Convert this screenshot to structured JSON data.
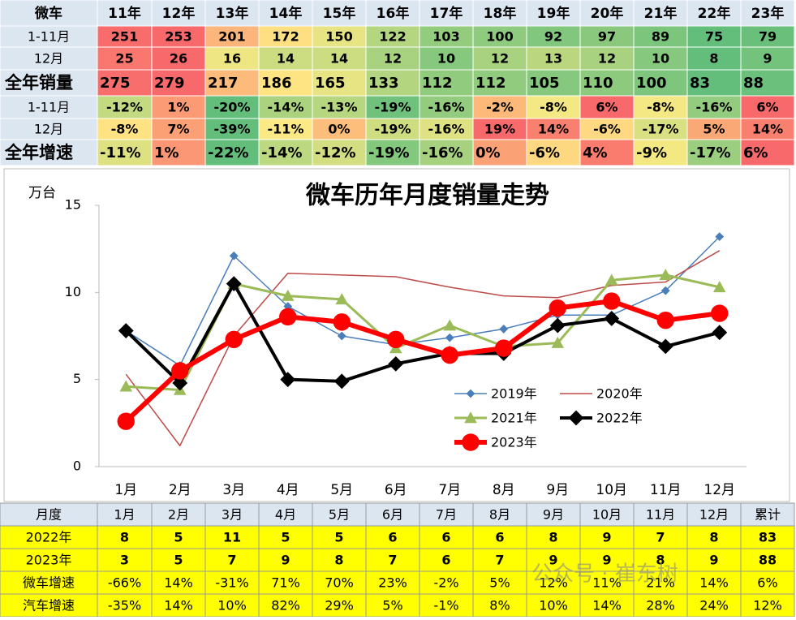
{
  "top_table": {
    "header": [
      "微车",
      "11年",
      "12年",
      "13年",
      "14年",
      "15年",
      "16年",
      "17年",
      "18年",
      "19年",
      "20年",
      "21年",
      "22年",
      "23年"
    ],
    "rows": [
      {
        "label": "1-11月",
        "cells": [
          251,
          253,
          201,
          172,
          150,
          122,
          103,
          100,
          92,
          97,
          89,
          75,
          79
        ]
      },
      {
        "label": "12月",
        "cells": [
          25,
          26,
          16,
          14,
          14,
          12,
          10,
          12,
          13,
          12,
          10,
          8,
          9
        ]
      },
      {
        "label": "全年销量",
        "cells": [
          275,
          279,
          217,
          186,
          165,
          133,
          112,
          112,
          105,
          110,
          100,
          83,
          88
        ]
      },
      {
        "label": "1-11月",
        "cells": [
          "-12%",
          "1%",
          "-20%",
          "-14%",
          "-13%",
          "-19%",
          "-16%",
          "-2%",
          "-8%",
          "6%",
          "-8%",
          "-16%",
          "6%"
        ]
      },
      {
        "label": "12月",
        "cells": [
          "-8%",
          "7%",
          "-39%",
          "-11%",
          "0%",
          "-19%",
          "-16%",
          "19%",
          "14%",
          "-6%",
          "-17%",
          "5%",
          "14%"
        ]
      },
      {
        "label": "全年增速",
        "cells": [
          "-11%",
          "1%",
          "-22%",
          "-14%",
          "-12%",
          "-19%",
          "-16%",
          "0%",
          "-6%",
          "4%",
          "-9%",
          "-17%",
          "6%"
        ]
      }
    ]
  },
  "chart_data": {
    "type": "line",
    "title": "微车历年月度销量走势",
    "y_label": "万台",
    "categories": [
      "1月",
      "2月",
      "3月",
      "4月",
      "5月",
      "6月",
      "7月",
      "8月",
      "9月",
      "10月",
      "11月",
      "12月"
    ],
    "ylim": [
      0,
      15
    ],
    "yticks": [
      0,
      5,
      10,
      15
    ],
    "grid": false,
    "legend": "lower right",
    "series": [
      {
        "name": "2019年",
        "color": "#4a7ebb",
        "marker": "diamond",
        "line_width": 1.5,
        "values": [
          7.8,
          5.8,
          12.1,
          9.2,
          7.5,
          7.0,
          7.4,
          7.9,
          8.7,
          8.7,
          10.1,
          13.2
        ]
      },
      {
        "name": "2020年",
        "color": "#be4b48",
        "marker": "none",
        "line_width": 1.5,
        "values": [
          5.3,
          1.2,
          7.5,
          11.1,
          11.0,
          10.9,
          10.3,
          9.8,
          9.7,
          10.4,
          10.6,
          12.4
        ]
      },
      {
        "name": "2021年",
        "color": "#9bbb59",
        "marker": "triangle",
        "line_width": 3,
        "values": [
          4.6,
          4.4,
          10.5,
          9.8,
          9.6,
          6.8,
          8.1,
          6.9,
          7.1,
          10.7,
          11.0,
          10.3
        ]
      },
      {
        "name": "2022年",
        "color": "#000000",
        "marker": "diamond",
        "line_width": 4,
        "values": [
          7.8,
          4.8,
          10.5,
          5.0,
          4.9,
          5.9,
          6.5,
          6.5,
          8.1,
          8.5,
          6.9,
          7.7
        ]
      },
      {
        "name": "2023年",
        "color": "#ff0000",
        "marker": "circle",
        "line_width": 6,
        "values": [
          2.6,
          5.5,
          7.3,
          8.6,
          8.3,
          7.3,
          6.4,
          6.8,
          9.1,
          9.5,
          8.4,
          8.8
        ]
      }
    ]
  },
  "bottom_table": {
    "header": [
      "月度",
      "1月",
      "2月",
      "3月",
      "4月",
      "5月",
      "6月",
      "7月",
      "8月",
      "9月",
      "10月",
      "11月",
      "12月",
      "累计"
    ],
    "rows": [
      {
        "label": "2022年",
        "cells": [
          8,
          5,
          11,
          5,
          5,
          6,
          6,
          6,
          8,
          9,
          7,
          8,
          83
        ]
      },
      {
        "label": "2023年",
        "cells": [
          3,
          5,
          7,
          9,
          8,
          7,
          6,
          7,
          9,
          9,
          8,
          9,
          88
        ]
      },
      {
        "label": "微车增速",
        "cells": [
          "-66%",
          "14%",
          "-31%",
          "71%",
          "70%",
          "23%",
          "-2%",
          "5%",
          "12%",
          "11%",
          "21%",
          "14%",
          "6%"
        ]
      },
      {
        "label": "汽车增速",
        "cells": [
          "-35%",
          "14%",
          "10%",
          "82%",
          "29%",
          "5%",
          "-1%",
          "8%",
          "10%",
          "14%",
          "28%",
          "24%",
          "12%"
        ]
      }
    ]
  },
  "watermark": "公众号 · 崔东树"
}
